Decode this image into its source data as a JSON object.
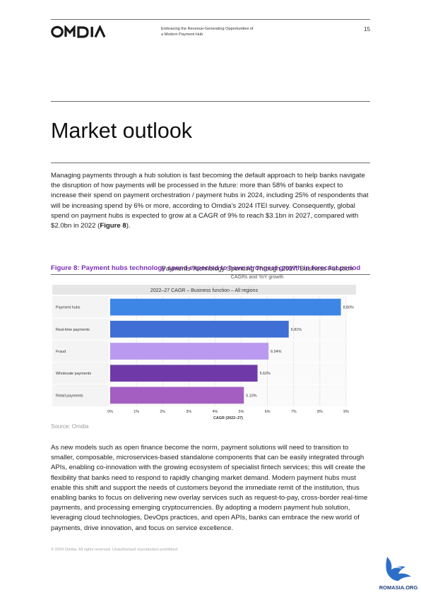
{
  "header": {
    "logo_text": "OMDIA",
    "doc_title_line1": "Embracing the Revenue-Generating Opportunities of",
    "doc_title_line2": "a Modern Payment Hub",
    "page_number": "15"
  },
  "section_title": "Market outlook",
  "intro_paragraph": {
    "text": "Managing payments through a hub solution is fast becoming the default approach to help banks navigate the disruption of how payments will be processed in the future: more than 58% of banks expect to increase their spend on payment orchestration / payment hubs in 2024, including 25% of respondents that will be increasing spend by 6% or more, according to Omdia’s 2024 ITEI survey. Consequently, global spend on payment hubs is expected to grow at a CAGR of 9% to reach $3.1bn in 2027, compared with $2.0bn in 2022 (",
    "ref": "Figure 8",
    "tail": ")."
  },
  "figure_caption": "Figure 8: Payment hubs technology spend expected to have strongest growth in forecast period",
  "chart_data": {
    "type": "bar",
    "orientation": "horizontal",
    "title": "Payments Technology Spending Through 2027: Business Function",
    "subtitle": "CAGRs and YoY growth",
    "panel_title": "2022–27 CAGR – Business function – All regions",
    "categories": [
      "Payment hubs",
      "Real-time payments",
      "Fraud",
      "Wholesale payments",
      "Retail payments"
    ],
    "values": [
      8.8,
      6.81,
      6.04,
      5.62,
      5.1
    ],
    "value_labels": [
      "8.80%",
      "6.81%",
      "6.04%",
      "5.62%",
      "5.10%"
    ],
    "bar_colors": [
      "#3d86e6",
      "#3f6fd4",
      "#b99af0",
      "#6f3aa8",
      "#a45ec2"
    ],
    "xlabel": "CAGR (2022–27)",
    "xlim": [
      0,
      9
    ],
    "xticks": [
      "0%",
      "1%",
      "2%",
      "3%",
      "4%",
      "5%",
      "6%",
      "7%",
      "8%",
      "9%"
    ],
    "grid": true
  },
  "source_note": "Source: Omdia",
  "body_paragraph": "As new models such as open finance become the norm, payment solutions will need to transition to smaller, composable, microservices-based standalone components that can be easily integrated through APIs, enabling co-innovation with the growing ecosystem of specialist fintech services; this will create the flexibility that banks need to respond to rapidly changing market demand. Modern payment hubs must enable this shift and support the needs of customers beyond the immediate remit of the institution, thus enabling banks to focus on delivering new overlay services such as request-to-pay, cross-border real-time payments, and processing emerging cryptocurrencies. By adopting a modern payment hub solution, leveraging cloud technologies, DevOps practices, and open APIs, banks can embrace the new world of payments, drive innovation, and focus on service excellence.",
  "footer": "© 2024 Omdia. All rights reserved. Unauthorized reproduction prohibited.",
  "watermark_text": "ROMASIA.ORG",
  "colors": {
    "accent_purple": "#7a2db8",
    "rule_gray": "#6e6e6e"
  }
}
